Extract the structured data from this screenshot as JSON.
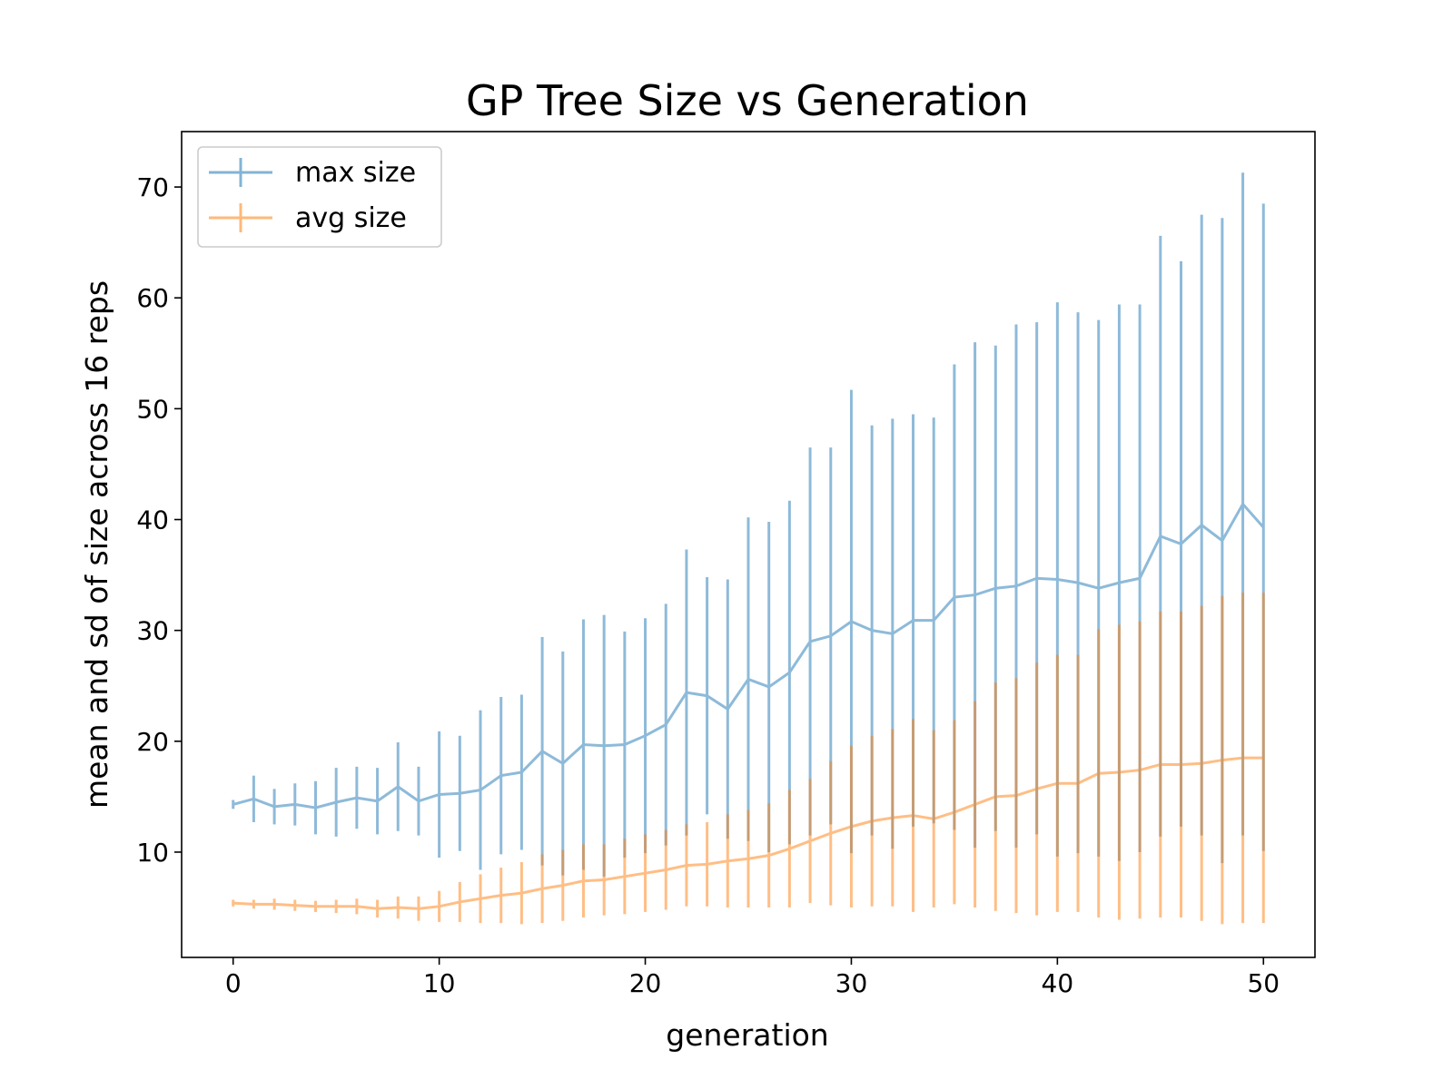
{
  "chart_data": {
    "type": "line",
    "title": "GP Tree Size vs Generation",
    "xlabel": "generation",
    "ylabel": "mean and sd of size across 16 reps",
    "xlim": [
      -2.5,
      52.5
    ],
    "ylim": [
      0.5,
      75
    ],
    "xticks": [
      0,
      10,
      20,
      30,
      40,
      50
    ],
    "yticks": [
      10,
      20,
      30,
      40,
      50,
      60,
      70
    ],
    "xtick_labels": [
      "0",
      "10",
      "20",
      "30",
      "40",
      "50"
    ],
    "ytick_labels": [
      "10",
      "20",
      "30",
      "40",
      "50",
      "60",
      "70"
    ],
    "grid": false,
    "legend_position": "top-left",
    "x": [
      0,
      1,
      2,
      3,
      4,
      5,
      6,
      7,
      8,
      9,
      10,
      11,
      12,
      13,
      14,
      15,
      16,
      17,
      18,
      19,
      20,
      21,
      22,
      23,
      24,
      25,
      26,
      27,
      28,
      29,
      30,
      31,
      32,
      33,
      34,
      35,
      36,
      37,
      38,
      39,
      40,
      41,
      42,
      43,
      44,
      45,
      46,
      47,
      48,
      49,
      50
    ],
    "series": [
      {
        "name": "max size",
        "color": "#1f77b4",
        "values": [
          14.3,
          14.8,
          14.1,
          14.3,
          14.0,
          14.5,
          14.9,
          14.6,
          15.9,
          14.6,
          15.2,
          15.3,
          15.6,
          16.9,
          17.2,
          19.1,
          18.0,
          19.7,
          19.6,
          19.7,
          20.5,
          21.5,
          24.4,
          24.1,
          22.9,
          25.6,
          24.9,
          26.2,
          29.0,
          29.5,
          30.8,
          30.0,
          29.7,
          30.9,
          30.9,
          33.0,
          33.2,
          33.8,
          34.0,
          34.7,
          34.6,
          34.3,
          33.8,
          34.3,
          34.7,
          38.5,
          37.8,
          39.5,
          38.1,
          41.4,
          39.3
        ],
        "sd": [
          0.4,
          2.1,
          1.6,
          1.9,
          2.4,
          3.1,
          2.8,
          3.0,
          4.0,
          3.1,
          5.7,
          5.2,
          7.2,
          7.1,
          7.0,
          10.3,
          10.1,
          11.3,
          11.8,
          10.2,
          10.6,
          10.9,
          12.9,
          10.7,
          11.7,
          14.6,
          14.9,
          15.5,
          17.5,
          17.0,
          20.9,
          18.5,
          19.4,
          18.6,
          18.3,
          21.0,
          22.8,
          21.9,
          23.6,
          23.1,
          25.0,
          24.4,
          24.2,
          25.1,
          24.7,
          27.1,
          25.5,
          28.0,
          29.1,
          29.9,
          29.2
        ]
      },
      {
        "name": "avg size",
        "color": "#ff7f0e",
        "values": [
          5.4,
          5.3,
          5.3,
          5.2,
          5.1,
          5.1,
          5.1,
          4.9,
          5.0,
          4.9,
          5.1,
          5.5,
          5.8,
          6.1,
          6.3,
          6.7,
          7.0,
          7.4,
          7.5,
          7.8,
          8.1,
          8.4,
          8.8,
          8.9,
          9.2,
          9.4,
          9.7,
          10.3,
          11.0,
          11.7,
          12.3,
          12.8,
          13.1,
          13.3,
          13.0,
          13.6,
          14.3,
          15.0,
          15.1,
          15.7,
          16.2,
          16.2,
          17.1,
          17.2,
          17.4,
          17.9,
          17.9,
          18.0,
          18.3,
          18.5,
          18.5
        ],
        "sd": [
          0.3,
          0.4,
          0.5,
          0.5,
          0.5,
          0.6,
          0.7,
          0.8,
          1.0,
          1.1,
          1.4,
          1.8,
          2.2,
          2.5,
          2.8,
          3.1,
          3.2,
          3.3,
          3.2,
          3.4,
          3.5,
          3.6,
          3.7,
          3.8,
          4.2,
          4.4,
          4.7,
          5.3,
          5.6,
          6.5,
          7.3,
          7.7,
          8.0,
          8.7,
          8.0,
          8.3,
          9.3,
          10.3,
          10.6,
          11.4,
          11.6,
          11.6,
          13.0,
          13.3,
          13.4,
          13.8,
          13.8,
          14.2,
          14.8,
          14.9,
          14.9
        ]
      }
    ]
  }
}
